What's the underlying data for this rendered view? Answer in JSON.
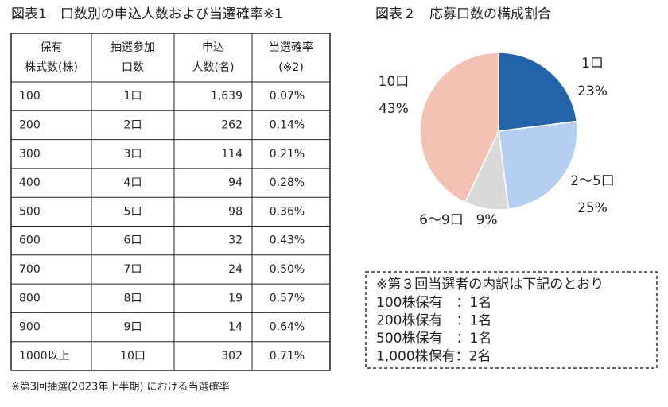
{
  "table": {
    "title": "図表1　口数別の申込人数および当選確率※1",
    "header": [
      [
        "保有",
        "株式数(株)"
      ],
      [
        "抽選参加",
        "口数"
      ],
      [
        "申込",
        "人数(名)"
      ],
      [
        "当選確率",
        "(※2)"
      ]
    ],
    "rows": [
      [
        "100",
        "1口",
        "1,639",
        "0.07%"
      ],
      [
        "200",
        "2口",
        "262",
        "0.14%"
      ],
      [
        "300",
        "3口",
        "114",
        "0.21%"
      ],
      [
        "400",
        "4口",
        "94",
        "0.28%"
      ],
      [
        "500",
        "5口",
        "98",
        "0.36%"
      ],
      [
        "600",
        "6口",
        "32",
        "0.43%"
      ],
      [
        "700",
        "7口",
        "24",
        "0.50%"
      ],
      [
        "800",
        "8口",
        "19",
        "0.57%"
      ],
      [
        "900",
        "9口",
        "14",
        "0.64%"
      ],
      [
        "1000以上",
        "10口",
        "302",
        "0.71%"
      ]
    ],
    "footnote": "※第3回抽選(2023年上半期) における当選確率"
  },
  "chart_data": {
    "type": "pie",
    "title": "図表２　応募口数の構成割合",
    "categories": [
      "1口",
      "2～5口",
      "6～9口",
      "10口"
    ],
    "values": [
      23,
      25,
      9,
      43
    ],
    "value_labels": [
      "23%",
      "25%",
      "9%",
      "43%"
    ],
    "colors": [
      "#2563a8",
      "#b4cff0",
      "#d9d9d9",
      "#f4c2b5"
    ]
  },
  "note": {
    "title": "※第３回当選者の内訳は下記のとおり",
    "lines": [
      "100株保有　：1名",
      "200株保有　：1名",
      "500株保有　：1名",
      "1,000株保有：2名"
    ]
  }
}
